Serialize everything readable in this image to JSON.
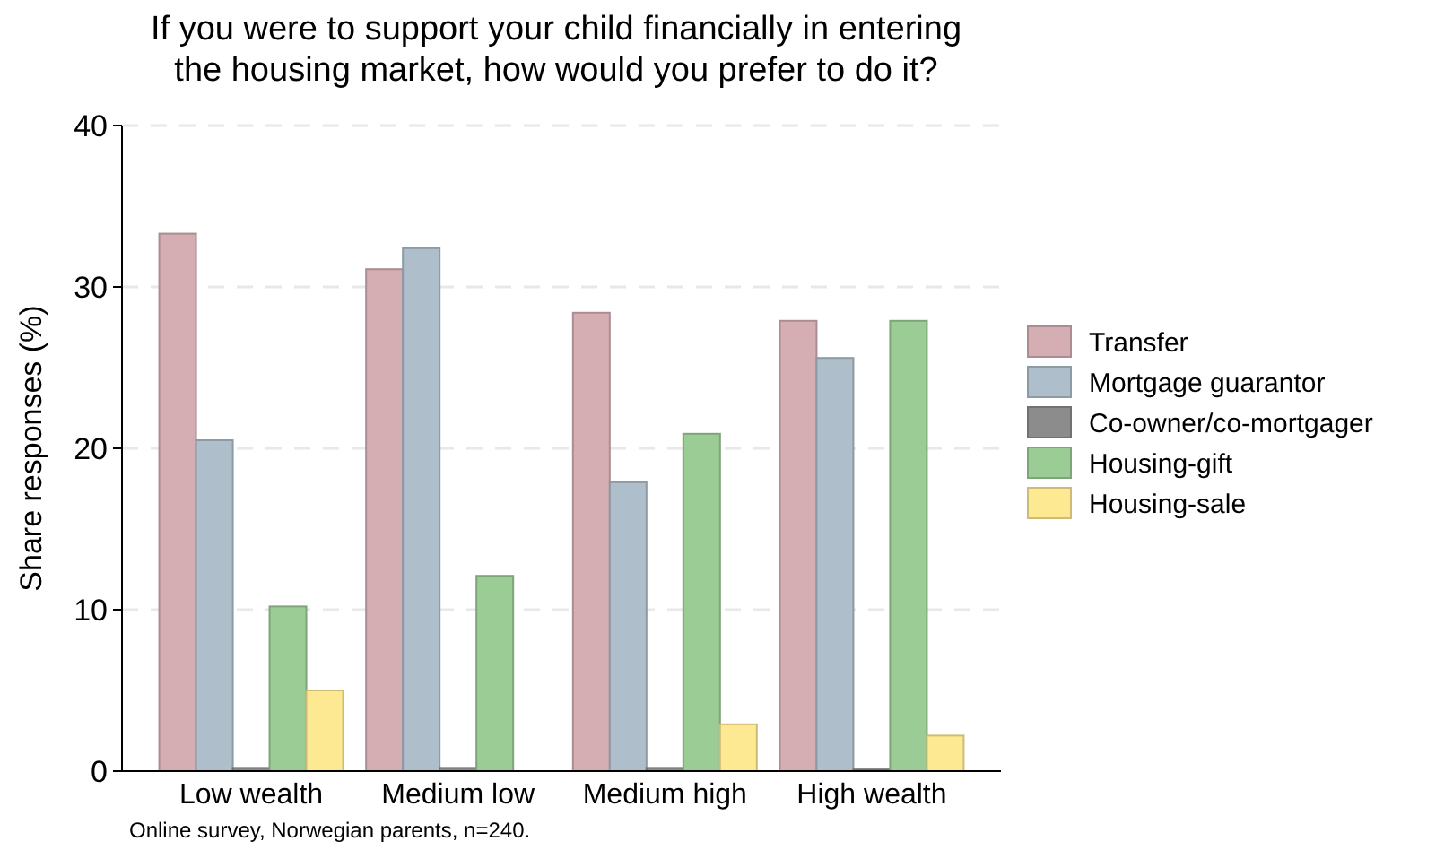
{
  "chart_data": {
    "type": "bar",
    "title": "If you were to support your child financially in entering\nthe housing market, how would you prefer to do it?",
    "ylabel": "Share responses (%)",
    "categories": [
      "Low wealth",
      "Medium low",
      "Medium high",
      "High wealth"
    ],
    "series": [
      {
        "name": "Transfer",
        "color": "#d4aeb2",
        "values": [
          33.3,
          31.1,
          28.4,
          27.9
        ]
      },
      {
        "name": "Mortgage guarantor",
        "color": "#aebfcb",
        "values": [
          20.5,
          32.4,
          17.9,
          25.6
        ]
      },
      {
        "name": "Co-owner/co-mortgager",
        "color": "#8c8c8c",
        "values": [
          0.2,
          0.2,
          0.2,
          0.1
        ]
      },
      {
        "name": "Housing-gift",
        "color": "#9ccc96",
        "values": [
          10.2,
          12.1,
          20.9,
          27.9
        ]
      },
      {
        "name": "Housing-sale",
        "color": "#fde992",
        "values": [
          5.0,
          0,
          2.9,
          2.2
        ]
      }
    ],
    "ylim": [
      0,
      40
    ],
    "yticks": [
      0,
      10,
      20,
      30,
      40
    ],
    "grid": "y",
    "legend": "right",
    "annotations": [
      "Online survey, Norwegian parents, n=240."
    ]
  }
}
